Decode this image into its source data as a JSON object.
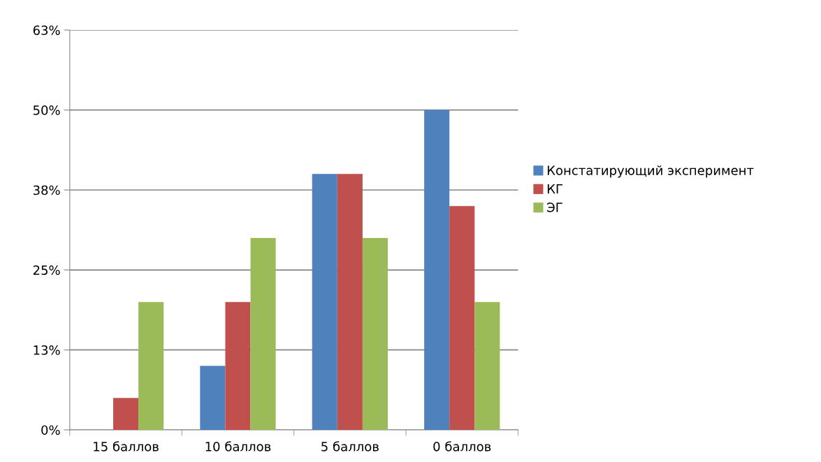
{
  "chart_data": {
    "type": "bar",
    "categories": [
      "15 баллов",
      "10 баллов",
      "5 баллов",
      "0 баллов"
    ],
    "series": [
      {
        "name": "Констатирующий эксперимент",
        "color": "#4f81bd",
        "values": [
          0,
          10,
          40,
          50
        ]
      },
      {
        "name": "КГ",
        "color": "#c0504d",
        "values": [
          5,
          20,
          40,
          35
        ]
      },
      {
        "name": "ЭГ",
        "color": "#9bbb59",
        "values": [
          20,
          30,
          30,
          20
        ]
      }
    ],
    "ylim": [
      0,
      62.5
    ],
    "yticks": [
      {
        "value": 0,
        "label": "0%"
      },
      {
        "value": 12.5,
        "label": "13%"
      },
      {
        "value": 25,
        "label": "25%"
      },
      {
        "value": 37.5,
        "label": "38%"
      },
      {
        "value": 50,
        "label": "50%"
      },
      {
        "value": 62.5,
        "label": "63%"
      }
    ],
    "grid": "y",
    "legend": "right"
  }
}
